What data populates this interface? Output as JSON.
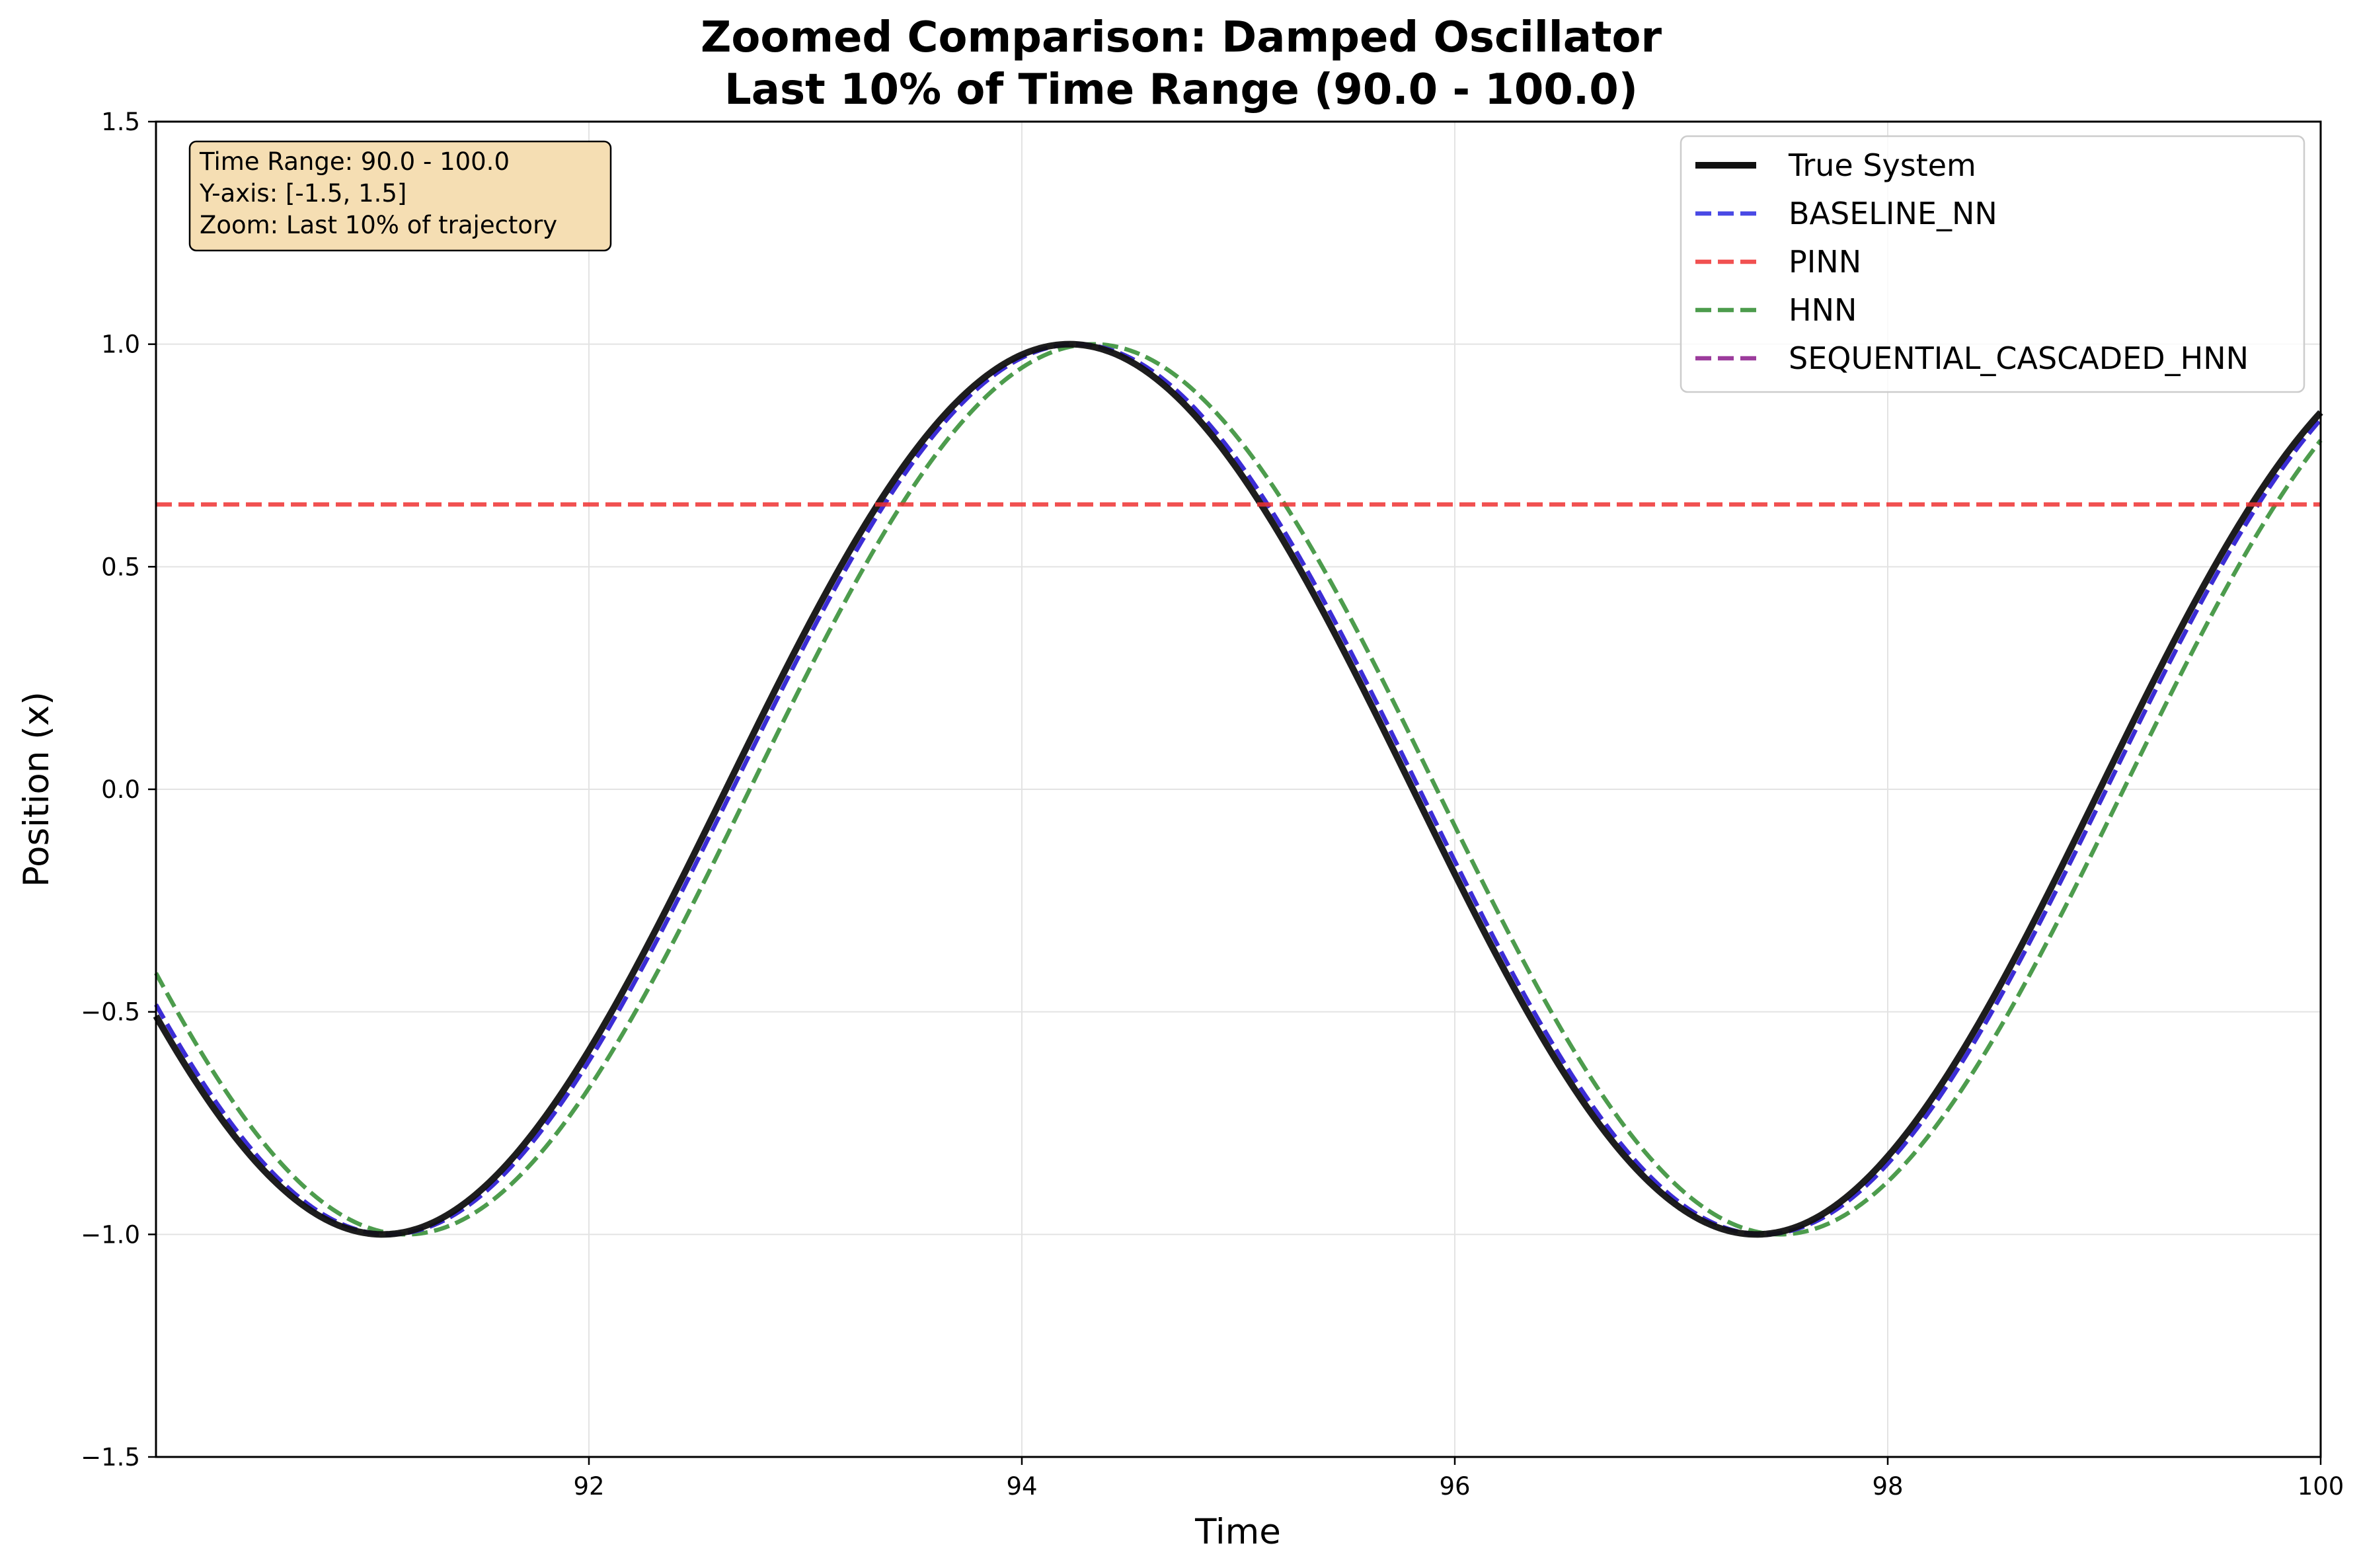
{
  "chart_data": {
    "type": "line",
    "title": "Zoomed Comparison: Damped Oscillator",
    "subtitle": "Last 10% of Time Range (90.0 - 100.0)",
    "xlabel": "Time",
    "ylabel": "Position (x)",
    "xlim": [
      90,
      100
    ],
    "ylim": [
      -1.5,
      1.5
    ],
    "xticks": [
      92,
      94,
      96,
      98,
      100
    ],
    "yticks": [
      -1.5,
      -1.0,
      -0.5,
      0.0,
      0.5,
      1.0,
      1.5
    ],
    "xtick_labels": [
      "92",
      "94",
      "96",
      "98",
      "100"
    ],
    "ytick_labels": [
      "−1.5",
      "−1.0",
      "−0.5",
      "0.0",
      "0.5",
      "1.0",
      "1.5"
    ],
    "grid": true,
    "legend_position": "top-right",
    "annotation": {
      "lines": [
        "Time Range: 90.0 - 100.0",
        "Y-axis: [-1.5, 1.5]",
        "Zoom: Last 10% of trajectory"
      ],
      "background": "#f5deb3",
      "position": "top-left"
    },
    "series": [
      {
        "name": "True System",
        "color": "#111111",
        "style": "solid",
        "model": "sinusoid",
        "amplitude": 1.0,
        "angular_frequency": 0.99,
        "peak_time": 94.22
      },
      {
        "name": "BASELINE_NN",
        "color": "#2a2ae0",
        "style": "dashed",
        "model": "sinusoid",
        "amplitude": 1.0,
        "angular_frequency": 0.99,
        "peak_time": 94.25
      },
      {
        "name": "PINN",
        "color": "#ee3333",
        "style": "dashed",
        "model": "constant",
        "value": 0.64
      },
      {
        "name": "HNN",
        "color": "#2e8b2e",
        "style": "dashed",
        "model": "sinusoid",
        "amplitude": 1.0,
        "angular_frequency": 0.99,
        "peak_time": 94.33
      },
      {
        "name": "SEQUENTIAL_CASCADED_HNN",
        "color": "#8b1a8b",
        "style": "dashed",
        "model": "sinusoid",
        "amplitude": 1.0,
        "angular_frequency": 0.99,
        "peak_time": 94.25
      }
    ]
  }
}
